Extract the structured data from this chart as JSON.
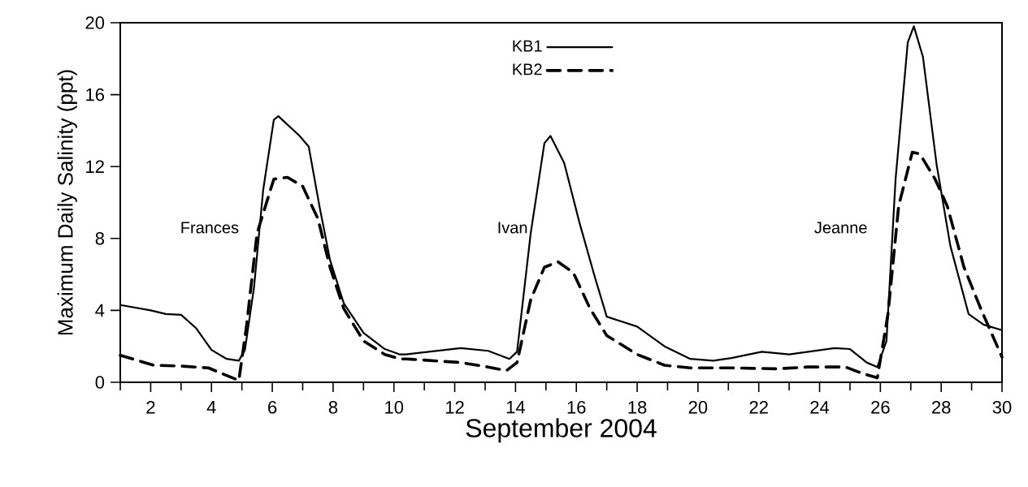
{
  "chart_data": {
    "type": "line",
    "xlabel": "September 2004",
    "ylabel": "Maximum Daily Salinity (ppt)",
    "xlim": [
      1,
      30
    ],
    "ylim": [
      0,
      20
    ],
    "xticks": [
      2,
      4,
      6,
      8,
      10,
      12,
      14,
      16,
      18,
      20,
      22,
      24,
      26,
      28,
      30
    ],
    "yticks": [
      0,
      4,
      8,
      12,
      16,
      20
    ],
    "legend": "top",
    "grid": false,
    "annotations": [
      "Frances",
      "Ivan",
      "Jeanne"
    ],
    "series": [
      {
        "name": "KB1",
        "color": "#000000",
        "line_style": "solid",
        "x": [
          1,
          2,
          2.5,
          3,
          3.5,
          4,
          4.5,
          4.9,
          5.1,
          5.4,
          5.7,
          6.05,
          6.2,
          6.9,
          7.2,
          7.55,
          7.9,
          8.35,
          9.0,
          9.7,
          10.2,
          10.4,
          12.2,
          13.1,
          13.8,
          14.05,
          14.5,
          14.95,
          15.15,
          15.6,
          16.1,
          16.6,
          17.0,
          18.0,
          18.9,
          19.75,
          20.5,
          21.1,
          22.1,
          23.0,
          24.5,
          25.0,
          25.55,
          25.9,
          26.2,
          26.5,
          26.9,
          27.1,
          27.4,
          27.85,
          28.3,
          28.9,
          29.4,
          30
        ],
        "values": [
          4.3,
          4.0,
          3.8,
          3.75,
          3.0,
          1.8,
          1.3,
          1.2,
          1.8,
          5.3,
          10.7,
          14.6,
          14.8,
          13.7,
          13.1,
          9.8,
          6.8,
          4.4,
          2.75,
          1.85,
          1.55,
          1.55,
          1.9,
          1.75,
          1.3,
          1.7,
          8.3,
          13.3,
          13.7,
          12.2,
          8.9,
          5.9,
          3.65,
          3.1,
          2.0,
          1.3,
          1.2,
          1.35,
          1.7,
          1.55,
          1.9,
          1.85,
          1.1,
          0.85,
          2.3,
          11.3,
          18.9,
          19.8,
          18.1,
          12.1,
          7.6,
          3.8,
          3.2,
          2.9
        ]
      },
      {
        "name": "KB2",
        "color": "#000000",
        "line_style": "dashed",
        "x": [
          1,
          2.1,
          3,
          3.9,
          4.9,
          5.15,
          5.5,
          6.05,
          6.5,
          7.0,
          7.5,
          7.9,
          8.35,
          9.0,
          9.7,
          10.2,
          10.4,
          12.2,
          13.1,
          13.7,
          14.05,
          14.5,
          14.95,
          15.4,
          15.9,
          16.45,
          17.0,
          18.0,
          18.9,
          19.75,
          20.5,
          21.1,
          22.6,
          23.6,
          24.85,
          25.4,
          25.9,
          26.25,
          26.6,
          27.05,
          27.3,
          27.8,
          28.2,
          28.75,
          29.3,
          30
        ],
        "values": [
          1.5,
          0.95,
          0.9,
          0.8,
          0.1,
          3.1,
          8.3,
          11.3,
          11.4,
          10.9,
          9.1,
          6.4,
          4.1,
          2.3,
          1.55,
          1.3,
          1.3,
          1.1,
          0.85,
          0.65,
          1.1,
          4.6,
          6.4,
          6.7,
          6.1,
          4.1,
          2.6,
          1.55,
          0.95,
          0.8,
          0.8,
          0.8,
          0.75,
          0.85,
          0.85,
          0.5,
          0.25,
          3.8,
          9.8,
          12.8,
          12.7,
          11.3,
          9.8,
          6.4,
          4.1,
          1.4
        ]
      }
    ]
  }
}
